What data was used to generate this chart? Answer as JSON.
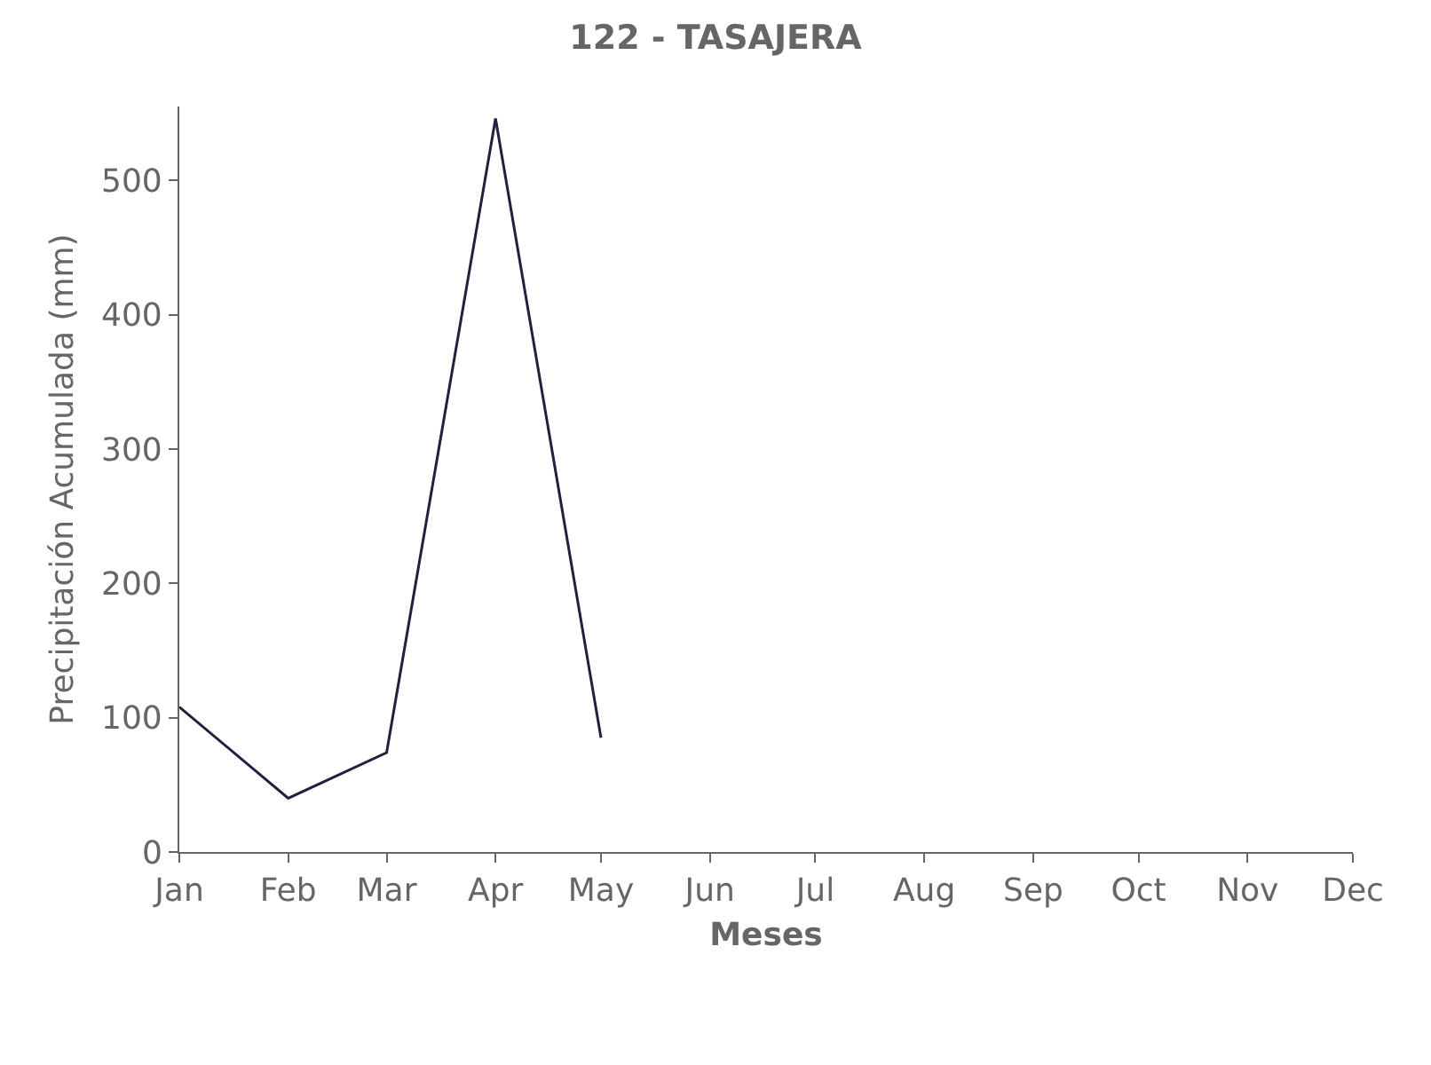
{
  "chart_data": {
    "type": "line",
    "title": "122 - TASAJERA",
    "xlabel": "Meses",
    "ylabel": "Precipitación Acumulada (mm)",
    "x": [
      "--01-01",
      "--02-01",
      "--03-01",
      "--04-01",
      "--05-01"
    ],
    "series": [
      {
        "color": "#221f3f",
        "values": [
          108,
          40,
          74,
          546,
          85
        ]
      }
    ],
    "xlim": [
      "--01-01",
      "--12-01"
    ],
    "xticks": [
      {
        "value": "--01-01",
        "label": "Jan"
      },
      {
        "value": "--02-01",
        "label": "Feb"
      },
      {
        "value": "--03-01",
        "label": "Mar"
      },
      {
        "value": "--04-01",
        "label": "Apr"
      },
      {
        "value": "--05-01",
        "label": "May"
      },
      {
        "value": "--06-01",
        "label": "Jun"
      },
      {
        "value": "--07-01",
        "label": "Jul"
      },
      {
        "value": "--08-01",
        "label": "Aug"
      },
      {
        "value": "--09-01",
        "label": "Sep"
      },
      {
        "value": "--10-01",
        "label": "Oct"
      },
      {
        "value": "--11-01",
        "label": "Nov"
      },
      {
        "value": "--12-01",
        "label": "Dec"
      }
    ],
    "ylim": [
      0,
      555
    ],
    "yticks": [
      0,
      100,
      200,
      300,
      400,
      500
    ]
  }
}
